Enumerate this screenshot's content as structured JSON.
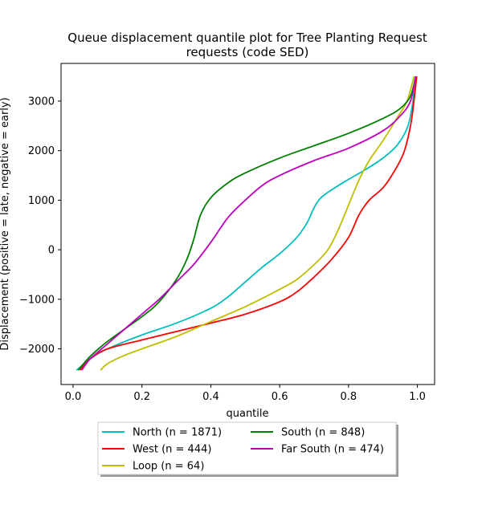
{
  "chart_data": {
    "type": "line",
    "title_line1": "Queue displacement quantile plot for Tree Planting Request",
    "title_line2": "requests (code SED)",
    "xlabel": "quantile",
    "ylabel": "Displacement (positive = late, negative = early)",
    "xlim": [
      -0.035,
      1.05
    ],
    "ylim": [
      -2720,
      3760
    ],
    "xticks": [
      0.0,
      0.2,
      0.4,
      0.6,
      0.8,
      1.0
    ],
    "xtick_labels": [
      "0.0",
      "0.2",
      "0.4",
      "0.6",
      "0.8",
      "1.0"
    ],
    "yticks": [
      -2000,
      -1000,
      0,
      1000,
      2000,
      3000
    ],
    "ytick_labels": [
      "−2000",
      "−1000",
      "0",
      "1000",
      "2000",
      "3000"
    ],
    "grid": false,
    "legend_placement": "below-center",
    "series": [
      {
        "name": "North (n = 1871)",
        "color": "#00bfbf",
        "points": [
          [
            0.01,
            -2430
          ],
          [
            0.05,
            -2200
          ],
          [
            0.1,
            -2000
          ],
          [
            0.2,
            -1720
          ],
          [
            0.3,
            -1480
          ],
          [
            0.4,
            -1180
          ],
          [
            0.45,
            -950
          ],
          [
            0.5,
            -650
          ],
          [
            0.55,
            -350
          ],
          [
            0.6,
            -80
          ],
          [
            0.65,
            250
          ],
          [
            0.68,
            550
          ],
          [
            0.7,
            850
          ],
          [
            0.72,
            1050
          ],
          [
            0.76,
            1250
          ],
          [
            0.8,
            1420
          ],
          [
            0.85,
            1620
          ],
          [
            0.9,
            1850
          ],
          [
            0.94,
            2100
          ],
          [
            0.97,
            2450
          ],
          [
            0.985,
            2900
          ],
          [
            0.995,
            3500
          ]
        ]
      },
      {
        "name": "West (n = 444)",
        "color": "#ff0000",
        "points": [
          [
            0.02,
            -2430
          ],
          [
            0.05,
            -2200
          ],
          [
            0.1,
            -2000
          ],
          [
            0.2,
            -1820
          ],
          [
            0.3,
            -1650
          ],
          [
            0.4,
            -1480
          ],
          [
            0.5,
            -1300
          ],
          [
            0.6,
            -1050
          ],
          [
            0.65,
            -850
          ],
          [
            0.7,
            -550
          ],
          [
            0.75,
            -200
          ],
          [
            0.8,
            250
          ],
          [
            0.83,
            700
          ],
          [
            0.86,
            1000
          ],
          [
            0.9,
            1250
          ],
          [
            0.93,
            1550
          ],
          [
            0.96,
            1950
          ],
          [
            0.98,
            2500
          ],
          [
            0.99,
            3000
          ],
          [
            0.998,
            3500
          ]
        ]
      },
      {
        "name": "Loop (n = 64)",
        "color": "#bfbf00",
        "points": [
          [
            0.08,
            -2430
          ],
          [
            0.1,
            -2300
          ],
          [
            0.15,
            -2130
          ],
          [
            0.2,
            -2000
          ],
          [
            0.3,
            -1750
          ],
          [
            0.4,
            -1450
          ],
          [
            0.5,
            -1150
          ],
          [
            0.6,
            -800
          ],
          [
            0.65,
            -600
          ],
          [
            0.7,
            -300
          ],
          [
            0.74,
            0
          ],
          [
            0.77,
            400
          ],
          [
            0.8,
            900
          ],
          [
            0.83,
            1400
          ],
          [
            0.86,
            1800
          ],
          [
            0.9,
            2200
          ],
          [
            0.94,
            2650
          ],
          [
            0.97,
            3000
          ],
          [
            0.99,
            3500
          ]
        ]
      },
      {
        "name": "South (n = 848)",
        "color": "#008000",
        "points": [
          [
            0.015,
            -2430
          ],
          [
            0.05,
            -2150
          ],
          [
            0.1,
            -1850
          ],
          [
            0.2,
            -1350
          ],
          [
            0.25,
            -1050
          ],
          [
            0.3,
            -600
          ],
          [
            0.33,
            -200
          ],
          [
            0.35,
            200
          ],
          [
            0.37,
            700
          ],
          [
            0.4,
            1050
          ],
          [
            0.45,
            1350
          ],
          [
            0.5,
            1550
          ],
          [
            0.6,
            1850
          ],
          [
            0.7,
            2100
          ],
          [
            0.8,
            2350
          ],
          [
            0.9,
            2650
          ],
          [
            0.95,
            2850
          ],
          [
            0.98,
            3100
          ],
          [
            0.995,
            3500
          ]
        ]
      },
      {
        "name": "Far South (n = 474)",
        "color": "#bf00bf",
        "points": [
          [
            0.025,
            -2430
          ],
          [
            0.05,
            -2200
          ],
          [
            0.1,
            -1900
          ],
          [
            0.2,
            -1300
          ],
          [
            0.25,
            -1000
          ],
          [
            0.3,
            -650
          ],
          [
            0.35,
            -300
          ],
          [
            0.4,
            150
          ],
          [
            0.45,
            650
          ],
          [
            0.5,
            1000
          ],
          [
            0.55,
            1300
          ],
          [
            0.6,
            1500
          ],
          [
            0.7,
            1800
          ],
          [
            0.8,
            2050
          ],
          [
            0.9,
            2400
          ],
          [
            0.95,
            2700
          ],
          [
            0.98,
            3000
          ],
          [
            0.995,
            3500
          ]
        ]
      }
    ]
  }
}
